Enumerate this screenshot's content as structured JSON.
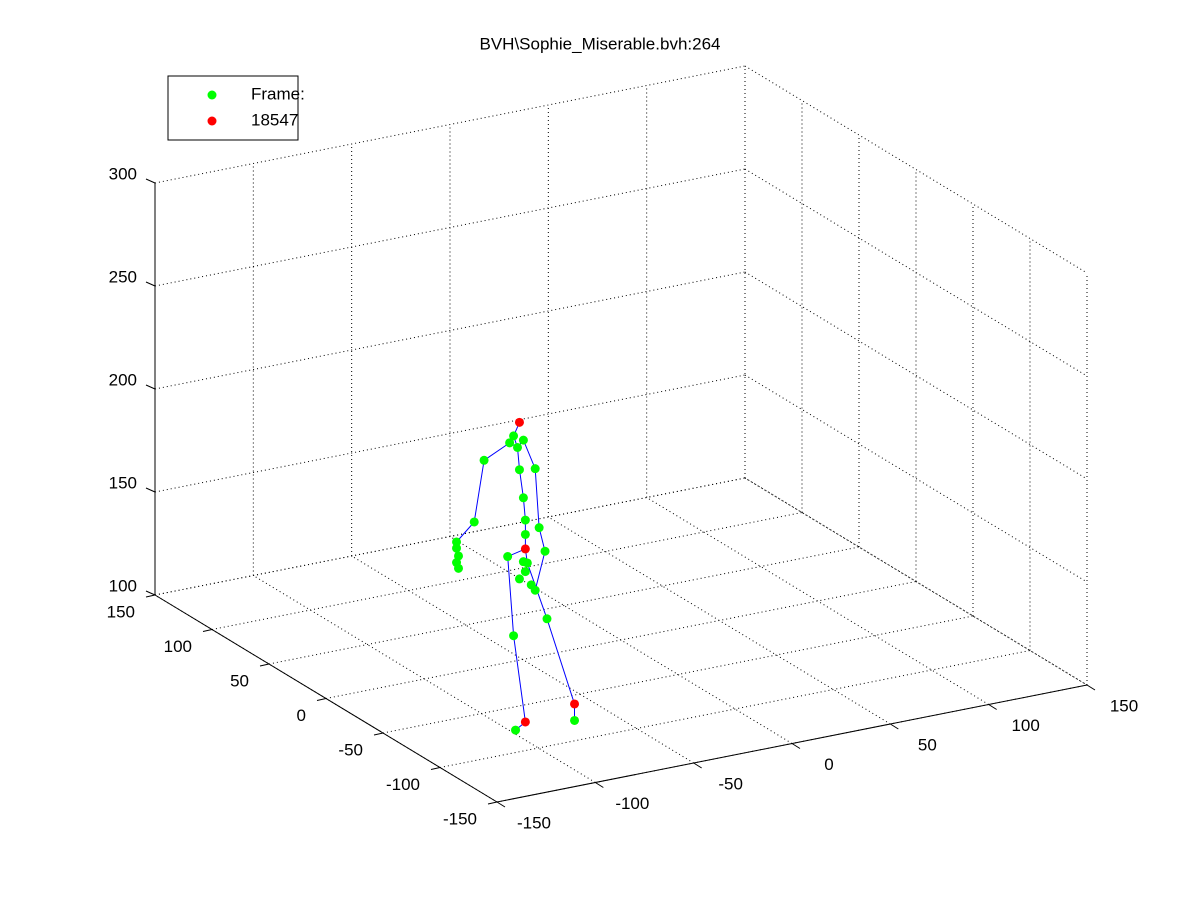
{
  "chart_data": {
    "type": "scatter3d",
    "title": "BVH\\Sophie_Miserable.bvh:264",
    "xlim": [
      -150,
      150
    ],
    "ylim": [
      -150,
      150
    ],
    "zlim": [
      100,
      300
    ],
    "xticks": [
      -150,
      -100,
      -50,
      0,
      50,
      100,
      150
    ],
    "yticks": [
      -150,
      -100,
      -50,
      0,
      50,
      100,
      150
    ],
    "zticks": [
      100,
      150,
      200,
      250,
      300
    ],
    "grid": true,
    "legend": "upper-left",
    "series": [
      {
        "name": "Frame:",
        "color": "#00ff00",
        "mode": "markers",
        "x": [
          -101,
          -103,
          -96,
          -99,
          -116,
          -98,
          -90,
          -121,
          -96,
          -88,
          -95,
          -130,
          -130,
          -129,
          -130,
          -129,
          -95,
          -104,
          -85,
          -96,
          -94,
          -95,
          -98,
          -92,
          -90,
          -101,
          -84,
          -70,
          -100
        ],
        "y": [
          -80,
          -80,
          -80,
          -80,
          -80,
          -80,
          -80,
          -80,
          -80,
          -80,
          -80,
          -80,
          -80,
          -80,
          -80,
          -80,
          -80,
          -80,
          -80,
          -80,
          -80,
          -80,
          -80,
          -80,
          -80,
          -80,
          -80,
          -80,
          -80
        ],
        "z": [
          245,
          242,
          242,
          239,
          236,
          228,
          227,
          207,
          214,
          198,
          203,
          199,
          196,
          192,
          189,
          186,
          196,
          187,
          186,
          183,
          182,
          178,
          175,
          171,
          168,
          148,
          153,
          101,
          102
        ]
      },
      {
        "name": "18547",
        "color": "#ff0000",
        "mode": "markers",
        "x": [
          -98,
          -95,
          -70,
          -95
        ],
        "y": [
          -80,
          -80,
          -80,
          -80
        ],
        "z": [
          251,
          189,
          109,
          105
        ]
      },
      {
        "color": "#0000ff",
        "mode": "lines",
        "x": [
          -95,
          -95,
          -95,
          -96,
          -98,
          -99,
          -101,
          -98,
          null,
          -99,
          -103,
          -116,
          -121,
          -130,
          -130,
          -129,
          -130,
          -129,
          null,
          -99,
          -96,
          -90,
          -88,
          -85,
          -90,
          -92,
          null,
          -95,
          -104,
          -101,
          -95,
          -100,
          null,
          -95,
          -94,
          -84,
          -70,
          -70
        ],
        "y": [
          -80,
          -80,
          -80,
          -80,
          -80,
          -80,
          -80,
          -80,
          null,
          -80,
          -80,
          -80,
          -80,
          -80,
          -80,
          -80,
          -80,
          -80,
          null,
          -80,
          -80,
          -80,
          -80,
          -80,
          -80,
          -80,
          null,
          -80,
          -80,
          -80,
          -80,
          -80,
          null,
          -80,
          -80,
          -80,
          -80,
          -80
        ],
        "z": [
          189,
          196,
          203,
          214,
          228,
          239,
          245,
          251,
          null,
          239,
          242,
          236,
          207,
          199,
          196,
          192,
          189,
          186,
          null,
          239,
          242,
          227,
          198,
          186,
          168,
          171,
          null,
          189,
          187,
          148,
          105,
          102,
          null,
          189,
          182,
          153,
          109,
          101
        ]
      }
    ]
  }
}
